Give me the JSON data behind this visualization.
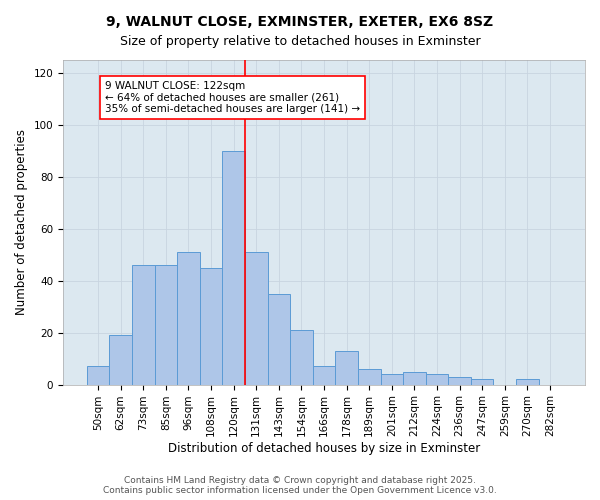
{
  "title": "9, WALNUT CLOSE, EXMINSTER, EXETER, EX6 8SZ",
  "subtitle": "Size of property relative to detached houses in Exminster",
  "xlabel": "Distribution of detached houses by size in Exminster",
  "ylabel": "Number of detached properties",
  "categories": [
    "50sqm",
    "62sqm",
    "73sqm",
    "85sqm",
    "96sqm",
    "108sqm",
    "120sqm",
    "131sqm",
    "143sqm",
    "154sqm",
    "166sqm",
    "178sqm",
    "189sqm",
    "201sqm",
    "212sqm",
    "224sqm",
    "236sqm",
    "247sqm",
    "259sqm",
    "270sqm",
    "282sqm"
  ],
  "values": [
    7,
    19,
    46,
    46,
    51,
    45,
    90,
    51,
    35,
    21,
    7,
    13,
    6,
    4,
    5,
    4,
    3,
    2,
    0,
    2,
    0
  ],
  "bar_color": "#aec6e8",
  "bar_edge_color": "#5b9bd5",
  "grid_color": "#c8d4e0",
  "background_color": "#dce8f0",
  "vline_color": "red",
  "annotation_text": "9 WALNUT CLOSE: 122sqm\n← 64% of detached houses are smaller (261)\n35% of semi-detached houses are larger (141) →",
  "annotation_box_color": "white",
  "annotation_box_edge_color": "red",
  "ylim": [
    0,
    125
  ],
  "yticks": [
    0,
    20,
    40,
    60,
    80,
    100,
    120
  ],
  "footnote": "Contains HM Land Registry data © Crown copyright and database right 2025.\nContains public sector information licensed under the Open Government Licence v3.0.",
  "title_fontsize": 10,
  "subtitle_fontsize": 9,
  "label_fontsize": 8.5,
  "tick_fontsize": 7.5,
  "annotation_fontsize": 7.5,
  "footnote_fontsize": 6.5
}
